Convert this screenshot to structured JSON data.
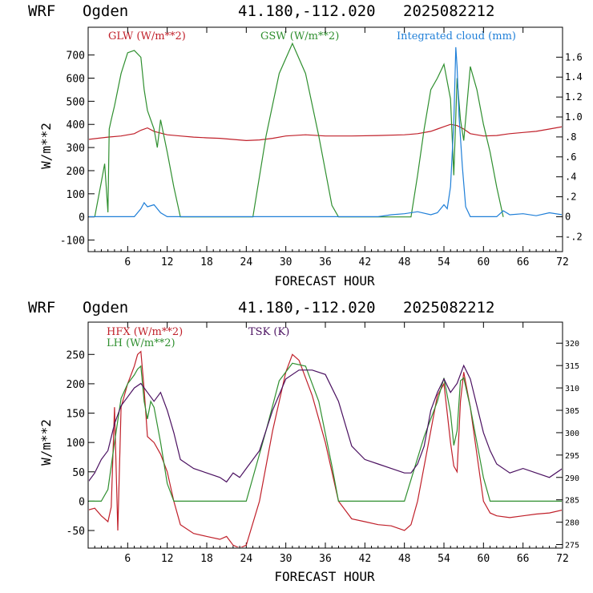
{
  "panels": [
    {
      "header": {
        "model": "WRF",
        "site": "Ogden",
        "coords": "41.180,-112.020",
        "run": "2025082212"
      },
      "legend": [
        {
          "label": "GLW (W/m**2)",
          "color": "#c0202a"
        },
        {
          "label": "GSW (W/m**2)",
          "color": "#2f8f2f"
        },
        {
          "label": "Integrated cloud (mm)",
          "color": "#1f7fd8"
        }
      ]
    },
    {
      "header": {
        "model": "WRF",
        "site": "Ogden",
        "coords": "41.180,-112.020",
        "run": "2025082212"
      },
      "legend": [
        {
          "label": "HFX (W/m**2)",
          "color": "#c0202a"
        },
        {
          "label": "LH  (W/m**2)",
          "color": "#2f8f2f"
        },
        {
          "label": "TSK (K)",
          "color": "#4a1060"
        }
      ]
    }
  ],
  "chart_data": [
    {
      "type": "line",
      "xlabel": "FORECAST HOUR",
      "ylabel": "W/m**2",
      "xlim": [
        0,
        72
      ],
      "ylim": [
        -150,
        820
      ],
      "xticks": [
        6,
        12,
        18,
        24,
        30,
        36,
        42,
        48,
        54,
        60,
        66,
        72
      ],
      "yticks": [
        -100,
        0,
        100,
        200,
        300,
        400,
        500,
        600,
        700
      ],
      "y2lim": [
        -0.35,
        1.9
      ],
      "y2ticks": [
        -0.2,
        0,
        0.2,
        0.4,
        0.6,
        0.8,
        1.0,
        1.2,
        1.4,
        1.6
      ],
      "y2ticklabels": [
        "-.2",
        "0",
        ".2",
        ".4",
        ".6",
        ".8",
        "1.0",
        "1.2",
        "1.4",
        "1.6"
      ],
      "series": [
        {
          "name": "GLW (W/m**2)",
          "color": "#c0202a",
          "axis": "left",
          "x": [
            0,
            3,
            5,
            7,
            8,
            9,
            10,
            12,
            14,
            16,
            18,
            20,
            22,
            24,
            26,
            28,
            30,
            33,
            36,
            40,
            44,
            48,
            50,
            52,
            53,
            54,
            55,
            56,
            57,
            58,
            60,
            62,
            64,
            66,
            68,
            70,
            72
          ],
          "y": [
            335,
            345,
            350,
            360,
            375,
            385,
            370,
            355,
            350,
            345,
            342,
            340,
            335,
            330,
            333,
            340,
            350,
            355,
            350,
            350,
            352,
            355,
            360,
            370,
            380,
            390,
            400,
            395,
            380,
            360,
            350,
            352,
            360,
            365,
            370,
            380,
            390
          ]
        },
        {
          "name": "GSW (W/m**2)",
          "color": "#2f8f2f",
          "axis": "left",
          "x": [
            1,
            2,
            2.5,
            3,
            3.2,
            3.5,
            4,
            5,
            6,
            7,
            8,
            8.5,
            9,
            9.5,
            10,
            10.5,
            11,
            12,
            13,
            14,
            25,
            27,
            29,
            31,
            33,
            35,
            37,
            38,
            49,
            50,
            51,
            52,
            53,
            54,
            55,
            55.5,
            56,
            56.5,
            57,
            58,
            59,
            60,
            61,
            62,
            63
          ],
          "y": [
            0,
            150,
            230,
            20,
            380,
            420,
            480,
            620,
            710,
            720,
            690,
            550,
            460,
            420,
            380,
            300,
            420,
            280,
            130,
            0,
            0,
            350,
            620,
            750,
            620,
            350,
            50,
            0,
            0,
            180,
            380,
            550,
            600,
            660,
            510,
            180,
            600,
            420,
            330,
            650,
            550,
            400,
            280,
            130,
            0
          ]
        },
        {
          "name": "Integrated cloud (mm)",
          "color": "#1f7fd8",
          "axis": "right",
          "x": [
            0,
            7,
            8,
            8.5,
            9,
            10,
            11,
            12,
            44,
            46,
            48,
            50,
            52,
            53,
            54,
            54.5,
            55,
            55.5,
            55.8,
            56,
            56.3,
            56.8,
            57.3,
            58,
            62,
            63,
            64,
            66,
            68,
            70,
            72
          ],
          "y": [
            0,
            0,
            0.08,
            0.14,
            0.1,
            0.12,
            0.04,
            0,
            0,
            0.02,
            0.03,
            0.05,
            0.02,
            0.04,
            0.12,
            0.08,
            0.3,
            0.95,
            1.7,
            1.5,
            1.0,
            0.5,
            0.1,
            0,
            0,
            0.06,
            0.02,
            0.03,
            0.01,
            0.04,
            0.02
          ]
        }
      ]
    },
    {
      "type": "line",
      "xlabel": "FORECAST HOUR",
      "ylabel": "W/m**2",
      "xlim": [
        0,
        72
      ],
      "ylim": [
        -80,
        305
      ],
      "xticks": [
        6,
        12,
        18,
        24,
        30,
        36,
        42,
        48,
        54,
        60,
        66,
        72
      ],
      "yticks": [
        -50,
        0,
        50,
        100,
        150,
        200,
        250
      ],
      "y2lim": [
        274.2,
        324.7
      ],
      "y2ticks": [
        275,
        280,
        285,
        290,
        295,
        300,
        305,
        310,
        315,
        320
      ],
      "series": [
        {
          "name": "HFX (W/m**2)",
          "color": "#c0202a",
          "axis": "left",
          "x": [
            0,
            1,
            2,
            3,
            3.5,
            4,
            4.5,
            5,
            6,
            7,
            7.5,
            8,
            8.5,
            9,
            10,
            11,
            12,
            13,
            14,
            16,
            18,
            20,
            21,
            22,
            23,
            24,
            26,
            28,
            30,
            31,
            32,
            34,
            36,
            38,
            40,
            42,
            44,
            46,
            48,
            49,
            50,
            52,
            53,
            54,
            54.5,
            55,
            55.5,
            56,
            56.5,
            57,
            58,
            60,
            61,
            62,
            64,
            66,
            68,
            70,
            72
          ],
          "y": [
            -15,
            -12,
            -25,
            -35,
            -10,
            160,
            -50,
            160,
            200,
            230,
            250,
            255,
            190,
            110,
            100,
            80,
            50,
            0,
            -40,
            -55,
            -60,
            -65,
            -60,
            -75,
            -80,
            -75,
            0,
            120,
            220,
            250,
            240,
            180,
            100,
            0,
            -30,
            -35,
            -40,
            -42,
            -50,
            -40,
            0,
            120,
            180,
            200,
            150,
            100,
            60,
            50,
            170,
            220,
            160,
            0,
            -20,
            -25,
            -28,
            -25,
            -22,
            -20,
            -15
          ]
        },
        {
          "name": "LH  (W/m**2)",
          "color": "#2f8f2f",
          "axis": "left",
          "x": [
            0,
            2,
            3,
            4,
            5,
            6,
            7,
            7.5,
            8,
            8.5,
            9,
            9.5,
            10,
            11,
            12,
            13,
            14,
            24,
            27,
            29,
            31,
            33,
            35,
            37,
            38,
            48,
            51,
            53,
            54,
            55,
            55.5,
            56,
            56.5,
            57,
            58,
            59,
            60,
            61,
            62,
            72
          ],
          "y": [
            0,
            0,
            20,
            100,
            175,
            200,
            215,
            225,
            230,
            170,
            140,
            170,
            160,
            100,
            30,
            0,
            0,
            0,
            120,
            205,
            235,
            230,
            170,
            60,
            0,
            0,
            110,
            170,
            210,
            150,
            95,
            120,
            205,
            210,
            160,
            100,
            40,
            0,
            0,
            0
          ]
        },
        {
          "name": "TSK (K)",
          "color": "#4a1060",
          "axis": "right",
          "x": [
            0,
            1,
            2,
            3,
            4,
            5,
            6,
            7,
            8,
            9,
            10,
            11,
            12,
            13,
            14,
            16,
            18,
            20,
            21,
            22,
            23,
            24,
            26,
            28,
            30,
            32,
            34,
            36,
            38,
            40,
            42,
            44,
            46,
            48,
            49,
            50,
            51,
            52,
            53,
            54,
            55,
            56,
            57,
            58,
            60,
            61,
            62,
            64,
            66,
            68,
            70,
            72
          ],
          "y": [
            289,
            291,
            294,
            296,
            302,
            306,
            308,
            310,
            311,
            309,
            307,
            309,
            305,
            300,
            294,
            292,
            291,
            290,
            289,
            291,
            290,
            292,
            296,
            305,
            312,
            314,
            314,
            313,
            307,
            297,
            294,
            293,
            292,
            291,
            291,
            293,
            297,
            305,
            309,
            312,
            309,
            311,
            315,
            312,
            300,
            296,
            293,
            291,
            292,
            291,
            290,
            292
          ]
        }
      ]
    }
  ]
}
